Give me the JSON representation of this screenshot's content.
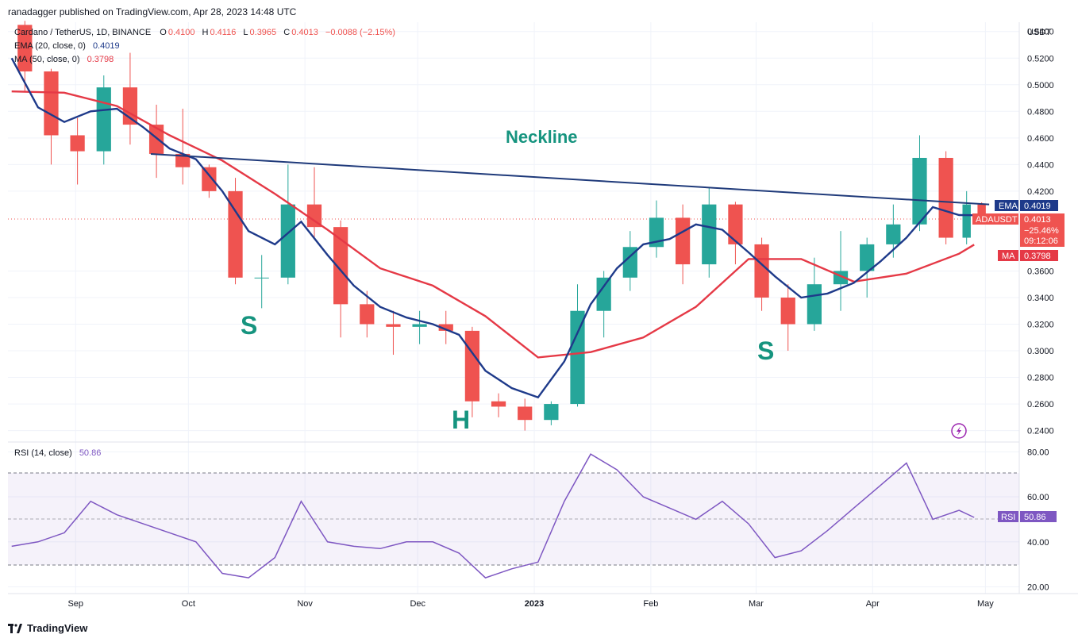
{
  "caption": "ranadagger published on TradingView.com, Apr 28, 2023 14:48 UTC",
  "legend": {
    "symbol": "Cardano / TetherUS, 1D, BINANCE",
    "o_label": "O",
    "o_value": "0.4100",
    "h_label": "H",
    "h_value": "0.4116",
    "l_label": "L",
    "l_value": "0.3965",
    "c_label": "C",
    "c_value": "0.4013",
    "change": "−0.0088 (−2.15%)",
    "ema_label": "EMA (20, close, 0)",
    "ema_value": "0.4019",
    "ma_label": "MA (50, close, 0)",
    "ma_value": "0.3798",
    "rsi_label": "RSI (14, close)",
    "rsi_value": "50.86"
  },
  "axis": {
    "currency": "USDT",
    "price_ticks": [
      "0.5400",
      "0.5200",
      "0.5000",
      "0.4800",
      "0.4600",
      "0.4400",
      "0.4200",
      "0.3600",
      "0.3400",
      "0.3200",
      "0.3000",
      "0.2800",
      "0.2600",
      "0.2400"
    ],
    "rsi_ticks": [
      "80.00",
      "60.00",
      "40.00",
      "20.00"
    ],
    "time_ticks": [
      "Sep",
      "Oct",
      "Nov",
      "Dec",
      "2023",
      "Feb",
      "Mar",
      "Apr",
      "May"
    ]
  },
  "badges": {
    "ema_tag": "EMA",
    "ema_value": "0.4019",
    "sym_tag": "ADAUSDT",
    "sym_price": "0.4013",
    "sym_change": "−25.46%",
    "sym_timer": "09:12:06",
    "ma_tag": "MA",
    "ma_value": "0.3798",
    "rsi_tag": "RSI",
    "rsi_value": "50.86"
  },
  "annotations": {
    "neckline": "Neckline",
    "left_shoulder": "S",
    "head": "H",
    "right_shoulder": "S"
  },
  "footer": {
    "brand": "TradingView"
  },
  "colors": {
    "up": "#26a69a",
    "down": "#ef5350",
    "ema": "#1e3a8a",
    "ma": "#e53946",
    "neckline": "#1f3a7a",
    "rsi": "#7e57c2",
    "annotation": "#16947f",
    "grid": "#f0f3fa"
  },
  "chart_data": {
    "type": "line",
    "title": "Cardano / TetherUS, 1D, BINANCE",
    "ylim": [
      0.232,
      0.547
    ],
    "rsi_ylim": [
      17,
      84
    ],
    "x_domain": [
      "2022-08-14",
      "2023-05-10"
    ],
    "neckline": {
      "x": [
        "2022-09-21",
        "2023-05-02"
      ],
      "y": [
        0.448,
        0.41
      ]
    },
    "series": [
      {
        "name": "EMA (20, close, 0)",
        "x": [
          "2022-08-15",
          "2022-08-22",
          "2022-08-29",
          "2022-09-05",
          "2022-09-12",
          "2022-09-19",
          "2022-09-26",
          "2022-10-03",
          "2022-10-10",
          "2022-10-17",
          "2022-10-24",
          "2022-10-31",
          "2022-11-07",
          "2022-11-14",
          "2022-11-21",
          "2022-11-28",
          "2022-12-05",
          "2022-12-12",
          "2022-12-19",
          "2022-12-26",
          "2023-01-02",
          "2023-01-09",
          "2023-01-16",
          "2023-01-23",
          "2023-01-30",
          "2023-02-06",
          "2023-02-13",
          "2023-02-20",
          "2023-02-27",
          "2023-03-06",
          "2023-03-13",
          "2023-03-20",
          "2023-03-27",
          "2023-04-03",
          "2023-04-10",
          "2023-04-17",
          "2023-04-24",
          "2023-04-28"
        ],
        "y": [
          0.52,
          0.483,
          0.472,
          0.48,
          0.482,
          0.468,
          0.452,
          0.444,
          0.42,
          0.39,
          0.38,
          0.397,
          0.372,
          0.349,
          0.333,
          0.325,
          0.32,
          0.312,
          0.285,
          0.272,
          0.265,
          0.292,
          0.335,
          0.362,
          0.38,
          0.384,
          0.395,
          0.391,
          0.374,
          0.356,
          0.34,
          0.343,
          0.351,
          0.367,
          0.385,
          0.408,
          0.402,
          0.4019
        ]
      },
      {
        "name": "MA (50, close, 0)",
        "x": [
          "2022-08-15",
          "2022-08-29",
          "2022-09-12",
          "2022-09-26",
          "2022-10-10",
          "2022-10-24",
          "2022-11-07",
          "2022-11-21",
          "2022-12-05",
          "2022-12-19",
          "2023-01-02",
          "2023-01-16",
          "2023-01-30",
          "2023-02-13",
          "2023-02-27",
          "2023-03-13",
          "2023-03-27",
          "2023-04-10",
          "2023-04-24",
          "2023-04-28"
        ],
        "y": [
          0.495,
          0.494,
          0.484,
          0.462,
          0.443,
          0.418,
          0.391,
          0.362,
          0.349,
          0.326,
          0.295,
          0.299,
          0.31,
          0.333,
          0.369,
          0.369,
          0.352,
          0.358,
          0.373,
          0.3798
        ]
      },
      {
        "name": "RSI (14, close)",
        "x": [
          "2022-08-15",
          "2022-08-22",
          "2022-08-29",
          "2022-09-05",
          "2022-09-12",
          "2022-09-19",
          "2022-09-26",
          "2022-10-03",
          "2022-10-10",
          "2022-10-17",
          "2022-10-24",
          "2022-10-31",
          "2022-11-07",
          "2022-11-14",
          "2022-11-21",
          "2022-11-28",
          "2022-12-05",
          "2022-12-12",
          "2022-12-19",
          "2022-12-26",
          "2023-01-02",
          "2023-01-09",
          "2023-01-16",
          "2023-01-23",
          "2023-01-30",
          "2023-02-06",
          "2023-02-13",
          "2023-02-20",
          "2023-02-27",
          "2023-03-06",
          "2023-03-13",
          "2023-03-20",
          "2023-03-27",
          "2023-04-03",
          "2023-04-10",
          "2023-04-17",
          "2023-04-24",
          "2023-04-28"
        ],
        "y": [
          38,
          40,
          44,
          58,
          52,
          48,
          44,
          40,
          26,
          24,
          33,
          58,
          40,
          38,
          37,
          40,
          40,
          35,
          24,
          28,
          31,
          58,
          79,
          72,
          60,
          55,
          50,
          58,
          48,
          33,
          36,
          45,
          55,
          65,
          75,
          50,
          54,
          50.86
        ]
      }
    ],
    "candles": [
      {
        "x": "2022-08-15",
        "o": 0.545,
        "h": 0.548,
        "l": 0.495,
        "c": 0.51
      },
      {
        "x": "2022-08-22",
        "o": 0.51,
        "h": 0.512,
        "l": 0.44,
        "c": 0.462
      },
      {
        "x": "2022-08-29",
        "o": 0.462,
        "h": 0.475,
        "l": 0.425,
        "c": 0.45
      },
      {
        "x": "2022-09-05",
        "o": 0.45,
        "h": 0.507,
        "l": 0.44,
        "c": 0.498
      },
      {
        "x": "2022-09-12",
        "o": 0.498,
        "h": 0.524,
        "l": 0.455,
        "c": 0.47
      },
      {
        "x": "2022-09-19",
        "o": 0.47,
        "h": 0.485,
        "l": 0.43,
        "c": 0.448
      },
      {
        "x": "2022-09-26",
        "o": 0.448,
        "h": 0.482,
        "l": 0.425,
        "c": 0.438
      },
      {
        "x": "2022-10-03",
        "o": 0.438,
        "h": 0.44,
        "l": 0.415,
        "c": 0.42
      },
      {
        "x": "2022-10-10",
        "o": 0.42,
        "h": 0.43,
        "l": 0.35,
        "c": 0.355
      },
      {
        "x": "2022-10-17",
        "o": 0.355,
        "h": 0.372,
        "l": 0.332,
        "c": 0.355
      },
      {
        "x": "2022-10-24",
        "o": 0.355,
        "h": 0.44,
        "l": 0.35,
        "c": 0.41
      },
      {
        "x": "2022-10-31",
        "o": 0.41,
        "h": 0.438,
        "l": 0.385,
        "c": 0.393
      },
      {
        "x": "2022-11-07",
        "o": 0.393,
        "h": 0.398,
        "l": 0.31,
        "c": 0.335
      },
      {
        "x": "2022-11-14",
        "o": 0.335,
        "h": 0.345,
        "l": 0.31,
        "c": 0.32
      },
      {
        "x": "2022-11-21",
        "o": 0.32,
        "h": 0.33,
        "l": 0.297,
        "c": 0.318
      },
      {
        "x": "2022-11-28",
        "o": 0.318,
        "h": 0.33,
        "l": 0.305,
        "c": 0.32
      },
      {
        "x": "2022-12-05",
        "o": 0.32,
        "h": 0.33,
        "l": 0.305,
        "c": 0.315
      },
      {
        "x": "2022-12-12",
        "o": 0.315,
        "h": 0.318,
        "l": 0.25,
        "c": 0.262
      },
      {
        "x": "2022-12-19",
        "o": 0.262,
        "h": 0.268,
        "l": 0.25,
        "c": 0.258
      },
      {
        "x": "2022-12-26",
        "o": 0.258,
        "h": 0.264,
        "l": 0.24,
        "c": 0.248
      },
      {
        "x": "2023-01-02",
        "o": 0.248,
        "h": 0.262,
        "l": 0.244,
        "c": 0.26
      },
      {
        "x": "2023-01-09",
        "o": 0.26,
        "h": 0.35,
        "l": 0.258,
        "c": 0.33
      },
      {
        "x": "2023-01-16",
        "o": 0.33,
        "h": 0.36,
        "l": 0.31,
        "c": 0.355
      },
      {
        "x": "2023-01-23",
        "o": 0.355,
        "h": 0.39,
        "l": 0.345,
        "c": 0.378
      },
      {
        "x": "2023-01-30",
        "o": 0.378,
        "h": 0.413,
        "l": 0.37,
        "c": 0.4
      },
      {
        "x": "2023-02-06",
        "o": 0.4,
        "h": 0.41,
        "l": 0.35,
        "c": 0.365
      },
      {
        "x": "2023-02-13",
        "o": 0.365,
        "h": 0.423,
        "l": 0.355,
        "c": 0.41
      },
      {
        "x": "2023-02-20",
        "o": 0.41,
        "h": 0.412,
        "l": 0.365,
        "c": 0.38
      },
      {
        "x": "2023-02-27",
        "o": 0.38,
        "h": 0.385,
        "l": 0.33,
        "c": 0.34
      },
      {
        "x": "2023-03-06",
        "o": 0.34,
        "h": 0.35,
        "l": 0.3,
        "c": 0.32
      },
      {
        "x": "2023-03-13",
        "o": 0.32,
        "h": 0.37,
        "l": 0.315,
        "c": 0.35
      },
      {
        "x": "2023-03-20",
        "o": 0.35,
        "h": 0.39,
        "l": 0.33,
        "c": 0.36
      },
      {
        "x": "2023-03-27",
        "o": 0.36,
        "h": 0.385,
        "l": 0.34,
        "c": 0.38
      },
      {
        "x": "2023-04-03",
        "o": 0.38,
        "h": 0.41,
        "l": 0.37,
        "c": 0.395
      },
      {
        "x": "2023-04-10",
        "o": 0.395,
        "h": 0.462,
        "l": 0.39,
        "c": 0.445
      },
      {
        "x": "2023-04-17",
        "o": 0.445,
        "h": 0.45,
        "l": 0.38,
        "c": 0.385
      },
      {
        "x": "2023-04-24",
        "o": 0.385,
        "h": 0.42,
        "l": 0.38,
        "c": 0.41
      },
      {
        "x": "2023-04-28",
        "o": 0.41,
        "h": 0.4116,
        "l": 0.3965,
        "c": 0.4013
      }
    ]
  }
}
